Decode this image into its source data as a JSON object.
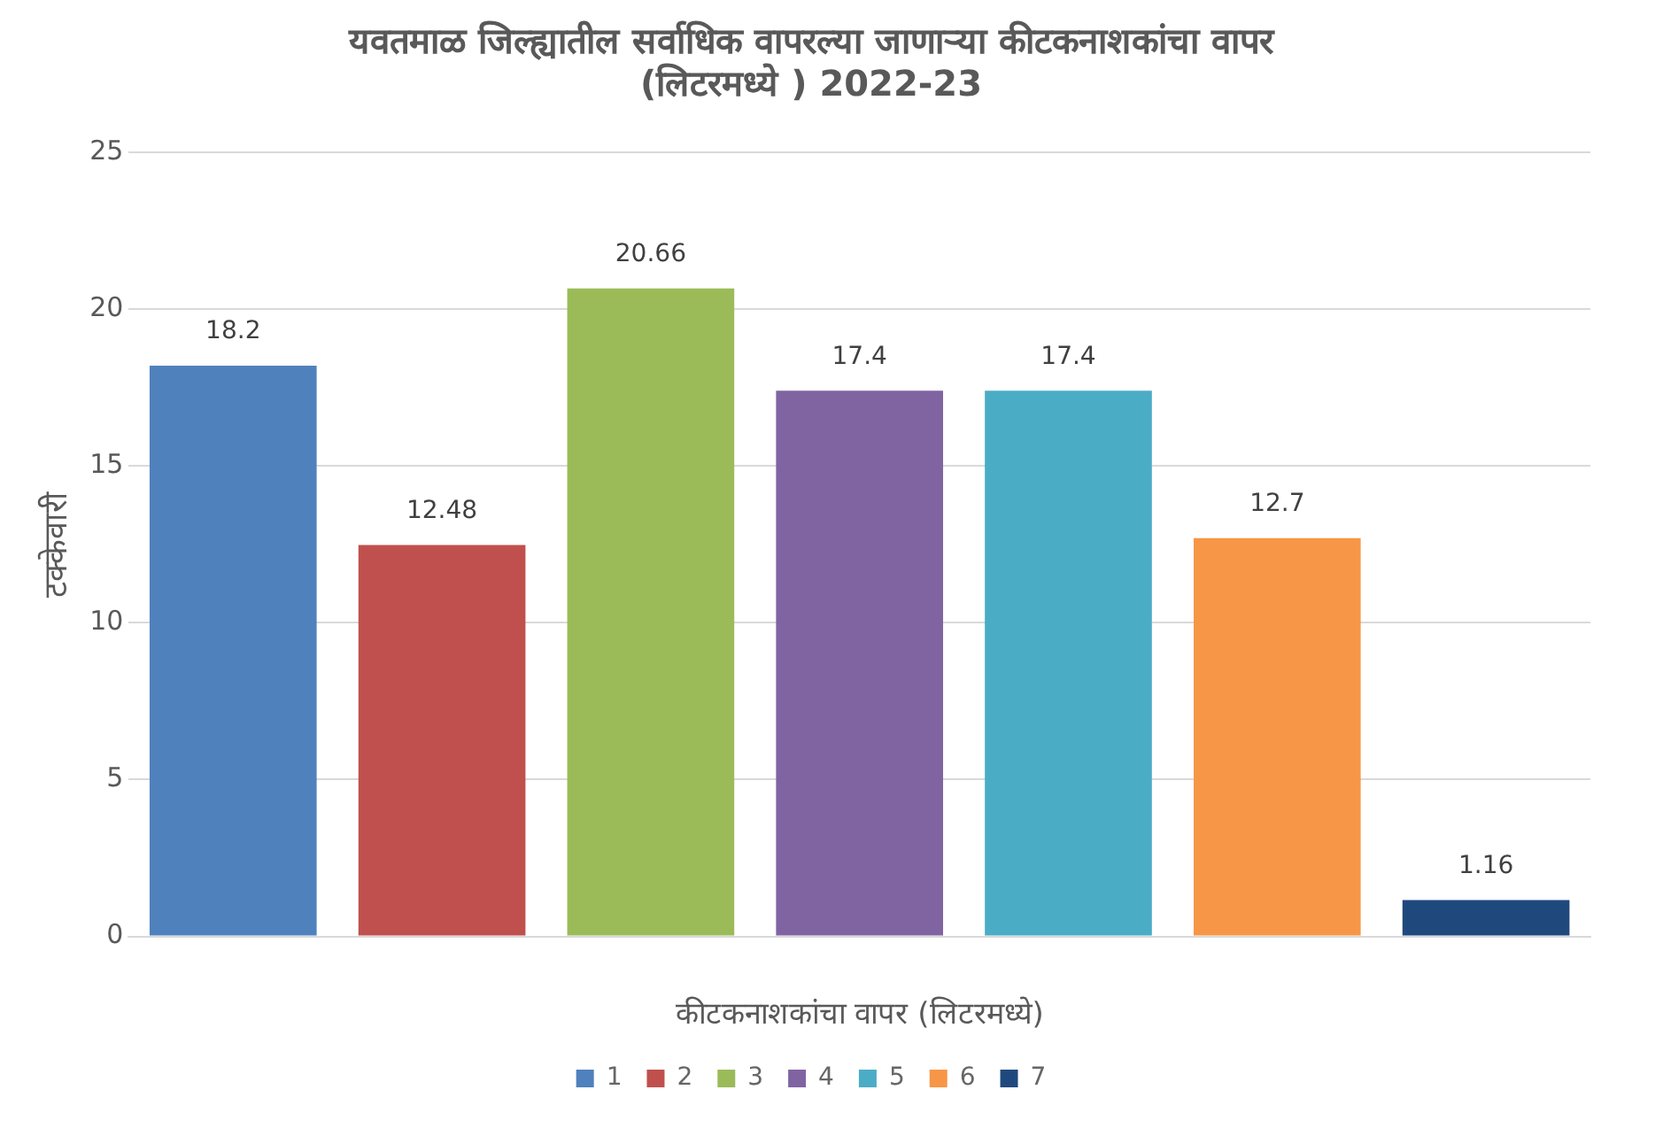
{
  "chart_data": {
    "type": "bar",
    "title": "यवतमाळ जिल्ह्यातील सर्वाधिक वापरल्या जाणाऱ्या कीटकनाशकांचा वापर\n(लिटरमध्ये ) 2022-23",
    "xlabel": "कीटकनाशकांचा वापर (लिटरमध्ये)",
    "ylabel": "टक्केवारी",
    "categories": [
      null,
      null,
      null,
      null,
      null,
      null,
      null
    ],
    "series": [
      {
        "name": "1",
        "color": "#4f81bd",
        "values": [
          18.2,
          null,
          null,
          null,
          null,
          null,
          null
        ]
      },
      {
        "name": "2",
        "color": "#c0504d",
        "values": [
          null,
          12.48,
          null,
          null,
          null,
          null,
          null
        ]
      },
      {
        "name": "3",
        "color": "#9bbb59",
        "values": [
          null,
          null,
          20.66,
          null,
          null,
          null,
          null
        ]
      },
      {
        "name": "4",
        "color": "#8064a2",
        "values": [
          null,
          null,
          null,
          17.4,
          null,
          null,
          null
        ]
      },
      {
        "name": "5",
        "color": "#4bacc6",
        "values": [
          null,
          null,
          null,
          null,
          17.4,
          null,
          null
        ]
      },
      {
        "name": "6",
        "color": "#f79646",
        "values": [
          null,
          null,
          null,
          null,
          null,
          12.7,
          null
        ]
      },
      {
        "name": "7",
        "color": "#1f497d",
        "values": [
          null,
          null,
          null,
          null,
          null,
          null,
          1.16
        ]
      }
    ],
    "ylim": [
      0,
      25
    ],
    "yticks": [
      0,
      5,
      10,
      15,
      20,
      25
    ],
    "grid": "y",
    "legend": "bottom",
    "data_labels": true
  }
}
